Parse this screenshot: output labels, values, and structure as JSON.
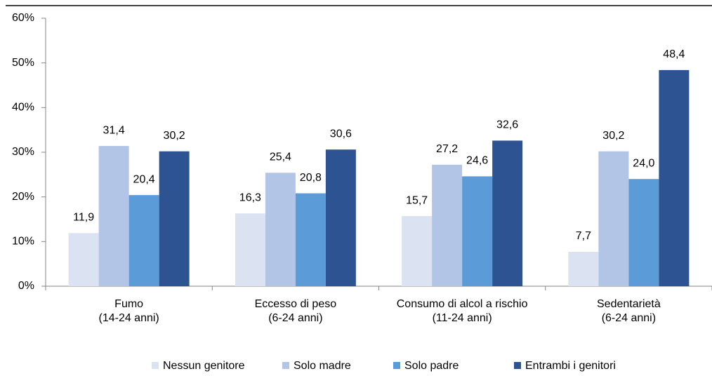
{
  "chart_data": {
    "type": "bar",
    "categories": [
      "Fumo\n(14-24 anni)",
      "Eccesso di peso\n(6-24 anni)",
      "Consumo di alcol a rischio\n(11-24 anni)",
      "Sedentarietà\n(6-24 anni)"
    ],
    "series": [
      {
        "name": "Nessun genitore",
        "color": "#dbe3f3",
        "values": [
          11.9,
          16.3,
          15.7,
          7.7
        ],
        "value_labels": [
          "11,9",
          "16,3",
          "15,7",
          "7,7"
        ]
      },
      {
        "name": "Solo madre",
        "color": "#b3c5e6",
        "values": [
          31.4,
          25.4,
          27.2,
          30.2
        ],
        "value_labels": [
          "31,4",
          "25,4",
          "27,2",
          "30,2"
        ]
      },
      {
        "name": "Solo padre",
        "color": "#5b9bd7",
        "values": [
          20.4,
          20.8,
          24.6,
          24.0
        ],
        "value_labels": [
          "20,4",
          "20,8",
          "24,6",
          "24,0"
        ]
      },
      {
        "name": "Entrambi i genitori",
        "color": "#2e5393",
        "values": [
          30.2,
          30.6,
          32.6,
          48.4
        ],
        "value_labels": [
          "30,2",
          "30,6",
          "32,6",
          "48,4"
        ]
      }
    ],
    "ylim": [
      0,
      60
    ],
    "yticks": [
      {
        "value": 0,
        "label": "0%"
      },
      {
        "value": 10,
        "label": "10%"
      },
      {
        "value": 20,
        "label": "20%"
      },
      {
        "value": 30,
        "label": "30%"
      },
      {
        "value": 40,
        "label": "40%"
      },
      {
        "value": 50,
        "label": "50%"
      },
      {
        "value": 60,
        "label": "60%"
      }
    ],
    "grid": false,
    "legend": "bottom"
  }
}
